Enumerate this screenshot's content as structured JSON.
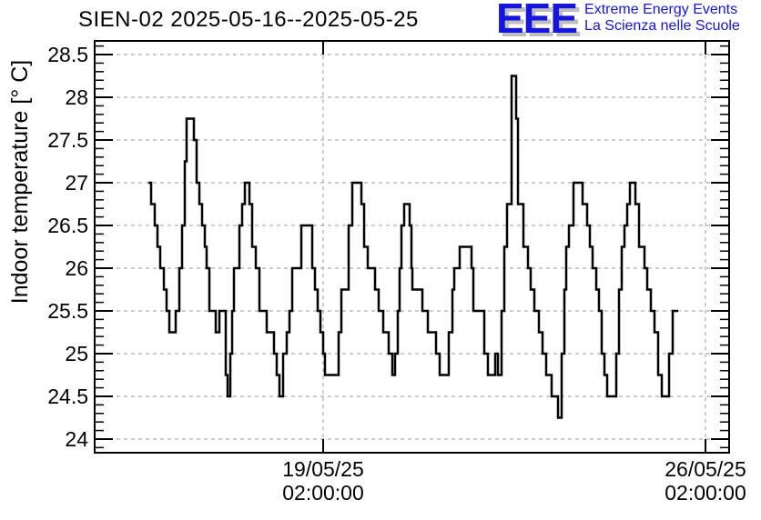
{
  "title": "SIEN-02 2025-05-16--2025-05-25",
  "logo": {
    "letters": "EEE",
    "line1": "Extreme Energy Events",
    "line2": "La Scienza nelle Scuole",
    "color": "#1515dd",
    "shadow_color": "#bdbdbd"
  },
  "colors": {
    "line": "#000000",
    "grid": "#999999",
    "frame": "#000000",
    "background": "#ffffff"
  },
  "chart_data": {
    "type": "line",
    "step": "after",
    "title": "SIEN-02 2025-05-16--2025-05-25",
    "xlabel": "",
    "ylabel": "Indoor temperature [° C]",
    "grid": true,
    "ylim": [
      23.84,
      28.66
    ],
    "xlim_hours": [
      -26.4,
      252.4
    ],
    "x_unit": "hours since 2025-05-16 00:00",
    "y_ticks": [
      24,
      24.5,
      25,
      25.5,
      26,
      26.5,
      27,
      27.5,
      28,
      28.5
    ],
    "y_minor_step": 0.1,
    "x_ticks": [
      {
        "hours": 74,
        "label_line1": "19/05/25",
        "label_line2": "02:00:00"
      },
      {
        "hours": 242,
        "label_line1": "26/05/25",
        "label_line2": "02:00:00"
      }
    ],
    "points": [
      [
        -2.8,
        27
      ],
      [
        -1.6,
        26.75
      ],
      [
        0,
        26.5
      ],
      [
        1.2,
        26.25
      ],
      [
        2.4,
        26
      ],
      [
        4,
        25.75
      ],
      [
        5.2,
        25.5
      ],
      [
        6.4,
        25.25
      ],
      [
        9.2,
        25.5
      ],
      [
        10.8,
        26
      ],
      [
        12,
        26.5
      ],
      [
        13.2,
        27.25
      ],
      [
        14,
        27.75
      ],
      [
        17.2,
        27.5
      ],
      [
        18.4,
        27
      ],
      [
        19.6,
        26.75
      ],
      [
        20.8,
        26.5
      ],
      [
        22,
        26.25
      ],
      [
        22.8,
        26
      ],
      [
        24,
        25.5
      ],
      [
        26.8,
        25.25
      ],
      [
        28.4,
        25.5
      ],
      [
        31.2,
        24.75
      ],
      [
        32,
        24.5
      ],
      [
        33.2,
        25
      ],
      [
        34,
        25.5
      ],
      [
        34.8,
        26
      ],
      [
        37.2,
        26.5
      ],
      [
        38.4,
        26.75
      ],
      [
        39.6,
        27
      ],
      [
        41.6,
        26.75
      ],
      [
        42.8,
        26.25
      ],
      [
        44.4,
        26
      ],
      [
        46,
        25.5
      ],
      [
        49.2,
        25.25
      ],
      [
        52.4,
        25
      ],
      [
        53.6,
        24.75
      ],
      [
        54.8,
        24.5
      ],
      [
        56.4,
        25
      ],
      [
        58,
        25.25
      ],
      [
        59.2,
        25.5
      ],
      [
        60.4,
        26
      ],
      [
        64.4,
        26.5
      ],
      [
        69.2,
        26
      ],
      [
        70.4,
        25.75
      ],
      [
        71.6,
        25.5
      ],
      [
        72.8,
        25.25
      ],
      [
        74,
        25
      ],
      [
        74.8,
        24.75
      ],
      [
        80.8,
        25.25
      ],
      [
        82,
        25.75
      ],
      [
        85.2,
        26.5
      ],
      [
        86.8,
        27
      ],
      [
        90.8,
        26.75
      ],
      [
        92,
        26.25
      ],
      [
        93.6,
        26
      ],
      [
        96.8,
        25.75
      ],
      [
        98.4,
        25.5
      ],
      [
        100.4,
        25.25
      ],
      [
        102.8,
        25
      ],
      [
        104.4,
        24.75
      ],
      [
        105.6,
        25
      ],
      [
        106.8,
        25.5
      ],
      [
        107.6,
        26
      ],
      [
        108.4,
        26.5
      ],
      [
        109.6,
        26.75
      ],
      [
        112,
        26.5
      ],
      [
        112.8,
        26
      ],
      [
        113.2,
        25.75
      ],
      [
        117.6,
        25.5
      ],
      [
        120,
        25.25
      ],
      [
        123.6,
        25
      ],
      [
        125.2,
        24.75
      ],
      [
        129.2,
        25.25
      ],
      [
        130.8,
        25.75
      ],
      [
        131.6,
        26
      ],
      [
        134,
        26.25
      ],
      [
        139.2,
        26
      ],
      [
        140,
        25.5
      ],
      [
        144.8,
        25
      ],
      [
        146.4,
        24.75
      ],
      [
        149.6,
        25
      ],
      [
        150.8,
        24.75
      ],
      [
        152.4,
        25.5
      ],
      [
        153.6,
        26.25
      ],
      [
        154.8,
        26.75
      ],
      [
        156.8,
        28.25
      ],
      [
        158.8,
        27.75
      ],
      [
        159.6,
        26.75
      ],
      [
        162,
        26.25
      ],
      [
        164,
        26
      ],
      [
        165.2,
        25.75
      ],
      [
        166.8,
        25.5
      ],
      [
        168.8,
        25.25
      ],
      [
        170.4,
        25
      ],
      [
        172,
        24.75
      ],
      [
        174.4,
        24.5
      ],
      [
        177.2,
        24.25
      ],
      [
        178.8,
        25
      ],
      [
        180,
        25.75
      ],
      [
        180.8,
        26.25
      ],
      [
        182,
        26.5
      ],
      [
        184,
        27
      ],
      [
        188,
        26.75
      ],
      [
        190,
        26.5
      ],
      [
        191.2,
        26.25
      ],
      [
        192.4,
        26
      ],
      [
        194,
        25.75
      ],
      [
        195.2,
        25.5
      ],
      [
        196.4,
        25
      ],
      [
        197.6,
        24.75
      ],
      [
        198.8,
        24.5
      ],
      [
        202.8,
        25
      ],
      [
        204,
        25.75
      ],
      [
        205.2,
        26.25
      ],
      [
        206.4,
        26.5
      ],
      [
        207.6,
        26.75
      ],
      [
        208.8,
        27
      ],
      [
        211.2,
        26.75
      ],
      [
        212.8,
        26.25
      ],
      [
        215.2,
        26
      ],
      [
        216.4,
        25.75
      ],
      [
        218,
        25.5
      ],
      [
        219.6,
        25.25
      ],
      [
        221.2,
        24.75
      ],
      [
        222.8,
        24.5
      ],
      [
        226,
        25
      ],
      [
        227.6,
        25.5
      ],
      [
        230,
        25.5
      ]
    ]
  }
}
